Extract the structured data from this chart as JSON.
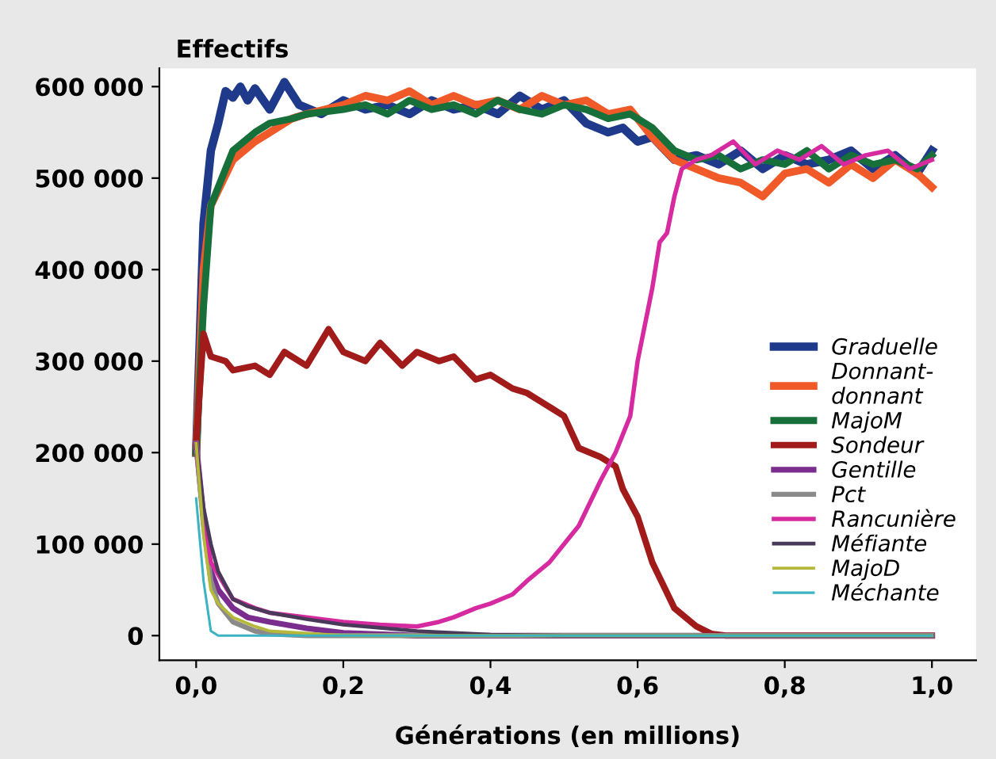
{
  "chart_data": {
    "type": "line",
    "ylabel": "Effectifs",
    "xlabel": "Générations (en millions)",
    "xlim": [
      -0.05,
      1.06
    ],
    "ylim": [
      -27000,
      620000
    ],
    "xticks": [
      {
        "value": 0,
        "label": "0,0"
      },
      {
        "value": 0.2,
        "label": "0,2"
      },
      {
        "value": 0.4,
        "label": "0,4"
      },
      {
        "value": 0.6,
        "label": "0,6"
      },
      {
        "value": 0.8,
        "label": "0,8"
      },
      {
        "value": 1.0,
        "label": "1,0"
      }
    ],
    "yticks": [
      {
        "value": 0,
        "label": "0"
      },
      {
        "value": 100000,
        "label": "100 000"
      },
      {
        "value": 200000,
        "label": "200 000"
      },
      {
        "value": 300000,
        "label": "300 000"
      },
      {
        "value": 400000,
        "label": "400 000"
      },
      {
        "value": 500000,
        "label": "500 000"
      },
      {
        "value": 600000,
        "label": "600 000"
      }
    ],
    "grid": false,
    "legend": "bottom right",
    "marker": "none",
    "line_style": "solid",
    "series": [
      {
        "name": "Graduelle",
        "color": "#1f3a8a",
        "x": [
          0,
          0.01,
          0.02,
          0.03,
          0.04,
          0.05,
          0.06,
          0.07,
          0.08,
          0.1,
          0.12,
          0.14,
          0.17,
          0.2,
          0.23,
          0.26,
          0.29,
          0.32,
          0.35,
          0.38,
          0.41,
          0.44,
          0.47,
          0.5,
          0.53,
          0.56,
          0.58,
          0.6,
          0.62,
          0.65,
          0.68,
          0.71,
          0.74,
          0.77,
          0.8,
          0.83,
          0.86,
          0.89,
          0.92,
          0.95,
          0.98,
          1.0
        ],
        "values": [
          200000,
          450000,
          530000,
          560000,
          595000,
          588000,
          600000,
          585000,
          598000,
          575000,
          605000,
          580000,
          570000,
          585000,
          575000,
          580000,
          570000,
          585000,
          575000,
          580000,
          570000,
          590000,
          575000,
          585000,
          560000,
          550000,
          555000,
          540000,
          545000,
          520000,
          525000,
          515000,
          530000,
          510000,
          525000,
          515000,
          520000,
          530000,
          510000,
          525000,
          505000,
          530000
        ]
      },
      {
        "name": "Donnant-\ndonnant",
        "color": "#f05a28",
        "x": [
          0,
          0.01,
          0.02,
          0.05,
          0.08,
          0.1,
          0.13,
          0.15,
          0.2,
          0.23,
          0.26,
          0.29,
          0.32,
          0.35,
          0.38,
          0.41,
          0.44,
          0.47,
          0.5,
          0.53,
          0.56,
          0.59,
          0.62,
          0.65,
          0.68,
          0.71,
          0.74,
          0.77,
          0.8,
          0.83,
          0.86,
          0.89,
          0.92,
          0.95,
          0.98,
          1.0
        ],
        "values": [
          200000,
          400000,
          470000,
          520000,
          540000,
          550000,
          565000,
          570000,
          580000,
          590000,
          585000,
          595000,
          580000,
          590000,
          580000,
          585000,
          575000,
          590000,
          580000,
          585000,
          570000,
          575000,
          545000,
          520000,
          510000,
          500000,
          495000,
          480000,
          505000,
          510000,
          495000,
          515000,
          500000,
          520000,
          505000,
          490000
        ]
      },
      {
        "name": "MajoM",
        "color": "#17703a",
        "x": [
          0,
          0.01,
          0.02,
          0.05,
          0.08,
          0.1,
          0.13,
          0.15,
          0.2,
          0.23,
          0.26,
          0.29,
          0.32,
          0.35,
          0.38,
          0.41,
          0.44,
          0.47,
          0.5,
          0.53,
          0.56,
          0.59,
          0.62,
          0.65,
          0.68,
          0.71,
          0.74,
          0.77,
          0.8,
          0.83,
          0.86,
          0.89,
          0.92,
          0.95,
          0.98,
          1.0
        ],
        "values": [
          200000,
          360000,
          470000,
          530000,
          550000,
          560000,
          565000,
          570000,
          575000,
          580000,
          570000,
          585000,
          575000,
          580000,
          570000,
          585000,
          575000,
          570000,
          580000,
          575000,
          565000,
          570000,
          555000,
          530000,
          520000,
          525000,
          510000,
          520000,
          515000,
          530000,
          510000,
          525000,
          515000,
          520000,
          510000,
          525000
        ]
      },
      {
        "name": "Sondeur",
        "color": "#a11b1b",
        "x": [
          0,
          0.01,
          0.02,
          0.04,
          0.05,
          0.08,
          0.1,
          0.12,
          0.15,
          0.18,
          0.2,
          0.23,
          0.25,
          0.28,
          0.3,
          0.33,
          0.35,
          0.38,
          0.4,
          0.43,
          0.45,
          0.48,
          0.5,
          0.52,
          0.55,
          0.57,
          0.58,
          0.6,
          0.62,
          0.65,
          0.68,
          0.7,
          0.72,
          1.0
        ],
        "values": [
          210000,
          330000,
          305000,
          300000,
          290000,
          295000,
          285000,
          310000,
          295000,
          335000,
          310000,
          300000,
          320000,
          295000,
          310000,
          300000,
          305000,
          280000,
          285000,
          270000,
          265000,
          250000,
          240000,
          205000,
          195000,
          185000,
          160000,
          130000,
          80000,
          30000,
          10000,
          2000,
          0,
          0
        ]
      },
      {
        "name": "Gentille",
        "color": "#7b2d8e",
        "x": [
          0,
          0.01,
          0.02,
          0.03,
          0.05,
          0.07,
          0.1,
          0.15,
          0.2,
          0.3,
          1.0
        ],
        "values": [
          210000,
          130000,
          70000,
          50000,
          30000,
          20000,
          15000,
          8000,
          3000,
          0,
          0
        ]
      },
      {
        "name": "Pct",
        "color": "#8a8a8a",
        "x": [
          0,
          0.01,
          0.02,
          0.03,
          0.05,
          0.08,
          0.1,
          0.15,
          1.0
        ],
        "values": [
          210000,
          120000,
          60000,
          35000,
          15000,
          5000,
          2000,
          0,
          0
        ]
      },
      {
        "name": "Rancunière",
        "color": "#d62aa0",
        "x": [
          0,
          0.01,
          0.02,
          0.05,
          0.08,
          0.1,
          0.15,
          0.2,
          0.25,
          0.3,
          0.33,
          0.35,
          0.38,
          0.4,
          0.43,
          0.45,
          0.48,
          0.5,
          0.52,
          0.55,
          0.57,
          0.59,
          0.6,
          0.62,
          0.63,
          0.64,
          0.65,
          0.66,
          0.68,
          0.7,
          0.73,
          0.76,
          0.79,
          0.82,
          0.85,
          0.88,
          0.91,
          0.94,
          0.97,
          1.0
        ],
        "values": [
          210000,
          130000,
          80000,
          40000,
          30000,
          25000,
          20000,
          15000,
          12000,
          10000,
          15000,
          20000,
          30000,
          35000,
          45000,
          60000,
          80000,
          100000,
          120000,
          170000,
          200000,
          240000,
          300000,
          380000,
          430000,
          440000,
          480000,
          510000,
          520000,
          525000,
          540000,
          515000,
          530000,
          520000,
          535000,
          515000,
          525000,
          530000,
          510000,
          520000
        ]
      },
      {
        "name": "Méfiante",
        "color": "#4a3a5a",
        "x": [
          0,
          0.01,
          0.02,
          0.03,
          0.05,
          0.07,
          0.1,
          0.15,
          0.2,
          0.3,
          0.4,
          0.5,
          1.0
        ],
        "values": [
          210000,
          140000,
          100000,
          70000,
          40000,
          32000,
          25000,
          18000,
          12000,
          5000,
          1000,
          0,
          0
        ]
      },
      {
        "name": "MajoD",
        "color": "#b5b83a",
        "x": [
          0,
          0.01,
          0.02,
          0.03,
          0.05,
          0.08,
          0.1,
          0.2,
          1.0
        ],
        "values": [
          210000,
          110000,
          50000,
          35000,
          20000,
          10000,
          5000,
          0,
          0
        ]
      },
      {
        "name": "Méchante",
        "color": "#3bb3c3",
        "x": [
          0,
          0.01,
          0.02,
          0.03,
          1.0
        ],
        "values": [
          150000,
          60000,
          5000,
          0,
          0
        ]
      }
    ]
  }
}
